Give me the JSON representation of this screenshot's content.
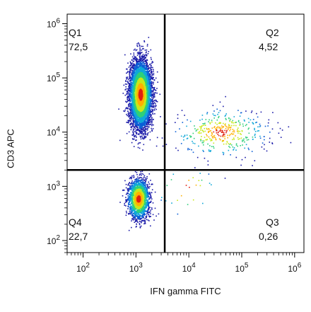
{
  "chart_data": {
    "type": "scatter",
    "subtype": "flow-cytometry-density-dot-plot",
    "title": "",
    "xlabel": "IFN gamma FITC",
    "ylabel": "CD3 APC",
    "x_scale": "log",
    "y_scale": "log",
    "xlim": [
      50,
      1500000
    ],
    "ylim": [
      60,
      1500000
    ],
    "x_ticks": [
      100,
      1000,
      10000,
      100000,
      1000000
    ],
    "y_ticks": [
      100,
      1000,
      10000,
      100000,
      1000000
    ],
    "tick_base": "10",
    "tick_exponents": [
      "2",
      "3",
      "4",
      "5",
      "6"
    ],
    "x_gate": 3500,
    "y_gate": 2000,
    "grid": false,
    "colormap": [
      "#1a1aa8",
      "#0b5fd6",
      "#10a8d8",
      "#2fd07a",
      "#c8e81a",
      "#ffb000",
      "#e02010"
    ],
    "quadrants": [
      {
        "name": "Q1",
        "value": "72,5"
      },
      {
        "name": "Q2",
        "value": "4,52"
      },
      {
        "name": "Q3",
        "value": "0,26"
      },
      {
        "name": "Q4",
        "value": "22,7"
      }
    ],
    "populations": [
      {
        "x_median": 1200,
        "y_median": 50000,
        "x_spread_decades": 0.1,
        "y_spread_decades": 0.3,
        "fraction": 0.725
      },
      {
        "x_median": 1100,
        "y_median": 600,
        "x_spread_decades": 0.1,
        "y_spread_decades": 0.18,
        "fraction": 0.227
      },
      {
        "x_median": 40000,
        "y_median": 10000,
        "x_spread_decades": 0.45,
        "y_spread_decades": 0.22,
        "fraction": 0.045
      },
      {
        "x_median": 9000,
        "y_median": 900,
        "x_spread_decades": 0.3,
        "y_spread_decades": 0.25,
        "fraction": 0.003
      }
    ]
  }
}
